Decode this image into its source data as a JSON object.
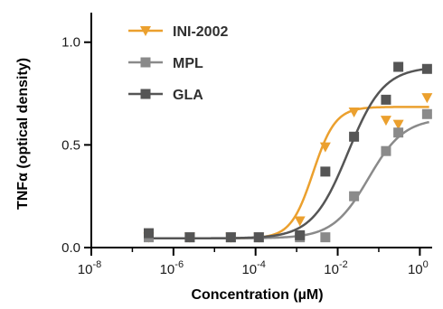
{
  "chart_data": {
    "type": "scatter",
    "title": "",
    "xlabel": "Concentration (µM)",
    "ylabel": "TNFα (optical density)",
    "xscale": "log10",
    "xlim_exponent": [
      -8,
      0.3
    ],
    "ylim": [
      0,
      1.1
    ],
    "x_ticks": [
      {
        "base": "10",
        "exp": "-8",
        "value": 1e-08
      },
      {
        "base": "10",
        "exp": "-6",
        "value": 1e-06
      },
      {
        "base": "10",
        "exp": "-4",
        "value": 0.0001
      },
      {
        "base": "10",
        "exp": "-2",
        "value": 0.01
      },
      {
        "base": "10",
        "exp": "0",
        "value": 1
      }
    ],
    "y_ticks": [
      {
        "label": "0.0",
        "value": 0.0
      },
      {
        "label": "0.5",
        "value": 0.5
      },
      {
        "label": "1.0",
        "value": 1.0
      }
    ],
    "grid": false,
    "legend_position": "top-left",
    "series": [
      {
        "name": "INI-2002",
        "color": "#eba02e",
        "marker": "triangle-down",
        "x": [
          2.5e-07,
          2.5e-06,
          2.5e-05,
          0.00012,
          0.0012,
          0.005,
          0.025,
          0.15,
          0.3,
          1.5
        ],
        "y": [
          0.05,
          0.05,
          0.05,
          0.05,
          0.13,
          0.49,
          0.66,
          0.62,
          0.6,
          0.73
        ],
        "fit": {
          "bottom": 0.045,
          "top": 0.685,
          "logEC50": -2.6,
          "hill": 1.6
        }
      },
      {
        "name": "MPL",
        "color": "#8a8a8a",
        "marker": "square",
        "x": [
          2.5e-07,
          2.5e-06,
          2.5e-05,
          0.00012,
          0.0012,
          0.005,
          0.025,
          0.15,
          0.3,
          1.5
        ],
        "y": [
          0.05,
          0.05,
          0.05,
          0.05,
          0.05,
          0.05,
          0.25,
          0.47,
          0.56,
          0.65
        ],
        "fit": {
          "bottom": 0.045,
          "top": 0.63,
          "logEC50": -1.25,
          "hill": 1.0
        }
      },
      {
        "name": "GLA",
        "color": "#555555",
        "marker": "square",
        "x": [
          2.5e-07,
          2.5e-06,
          2.5e-05,
          0.00012,
          0.0012,
          0.005,
          0.025,
          0.15,
          0.3,
          1.5
        ],
        "y": [
          0.07,
          0.05,
          0.05,
          0.05,
          0.06,
          0.37,
          0.54,
          0.72,
          0.88,
          0.87
        ],
        "fit": {
          "bottom": 0.045,
          "top": 0.88,
          "logEC50": -1.75,
          "hill": 1.0
        }
      }
    ]
  }
}
